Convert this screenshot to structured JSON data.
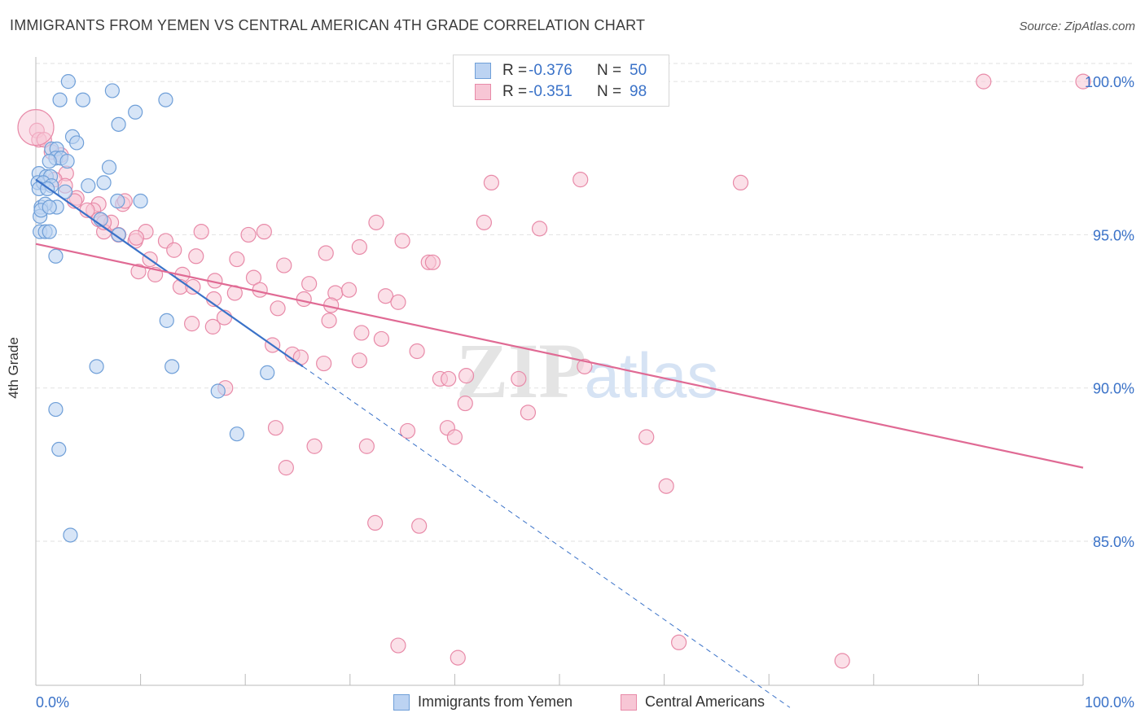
{
  "title": "IMMIGRANTS FROM YEMEN VS CENTRAL AMERICAN 4TH GRADE CORRELATION CHART",
  "source": "Source: ZipAtlas.com",
  "watermark": {
    "zip": "ZIP",
    "atlas": "atlas"
  },
  "legend": {
    "yemen": {
      "r_label": "R =",
      "r_value": "-0.376",
      "n_label": "N =",
      "n_value": "50"
    },
    "central": {
      "r_label": "R =",
      "r_value": "-0.351",
      "n_label": "N =",
      "n_value": "98"
    }
  },
  "colors": {
    "yemen_fill": "#bcd3f2",
    "yemen_stroke": "#6f9fd8",
    "yemen_line": "#3a72c8",
    "central_fill": "#f7c6d5",
    "central_stroke": "#e88aa8",
    "central_line": "#e06a94",
    "axis_text": "#3a72c8",
    "grid": "#e2e2e2"
  },
  "chart_data": {
    "type": "scatter",
    "title": "IMMIGRANTS FROM YEMEN VS CENTRAL AMERICAN 4TH GRADE CORRELATION CHART",
    "xlabel": "",
    "ylabel": "4th Grade",
    "xlim": [
      0,
      100
    ],
    "ylim": [
      80.3,
      100.8
    ],
    "x_tick_labels": [
      "0.0%",
      "100.0%"
    ],
    "y_ticks": [
      {
        "value": 100,
        "label": "100.0%"
      },
      {
        "value": 95,
        "label": "95.0%"
      },
      {
        "value": 90,
        "label": "90.0%"
      },
      {
        "value": 85,
        "label": "85.0%"
      }
    ],
    "grid": true,
    "legend_position": "top-center",
    "series": [
      {
        "name": "Immigrants from Yemen",
        "r": -0.376,
        "n": 50,
        "trend": {
          "x0": 0,
          "y0": 96.8,
          "x1": 25.5,
          "y1": 90.7,
          "dash_to_x": 72
        },
        "points": [
          [
            3.1,
            100.0
          ],
          [
            7.3,
            99.7
          ],
          [
            2.3,
            99.4
          ],
          [
            4.5,
            99.4
          ],
          [
            12.4,
            99.4
          ],
          [
            9.5,
            99.0
          ],
          [
            7.9,
            98.6
          ],
          [
            3.5,
            98.2
          ],
          [
            3.9,
            98.0
          ],
          [
            1.5,
            97.8
          ],
          [
            2.0,
            97.8
          ],
          [
            1.9,
            97.5
          ],
          [
            2.4,
            97.5
          ],
          [
            1.3,
            97.4
          ],
          [
            3.0,
            97.4
          ],
          [
            7.0,
            97.2
          ],
          [
            0.3,
            97.0
          ],
          [
            1.0,
            96.9
          ],
          [
            1.4,
            96.9
          ],
          [
            0.2,
            96.7
          ],
          [
            0.7,
            96.7
          ],
          [
            0.3,
            96.5
          ],
          [
            1.5,
            96.6
          ],
          [
            5.0,
            96.6
          ],
          [
            6.5,
            96.7
          ],
          [
            7.8,
            96.1
          ],
          [
            10.0,
            96.1
          ],
          [
            0.5,
            95.9
          ],
          [
            2.0,
            95.9
          ],
          [
            0.9,
            96.0
          ],
          [
            0.4,
            95.6
          ],
          [
            6.2,
            95.5
          ],
          [
            0.4,
            95.1
          ],
          [
            0.9,
            95.1
          ],
          [
            1.3,
            95.1
          ],
          [
            7.9,
            95.0
          ],
          [
            0.5,
            95.8
          ],
          [
            1.3,
            95.9
          ],
          [
            1.9,
            94.3
          ],
          [
            12.5,
            92.2
          ],
          [
            5.8,
            90.7
          ],
          [
            13.0,
            90.7
          ],
          [
            22.1,
            90.5
          ],
          [
            17.4,
            89.9
          ],
          [
            1.9,
            89.3
          ],
          [
            19.2,
            88.5
          ],
          [
            2.2,
            88.0
          ],
          [
            3.3,
            85.2
          ],
          [
            1.1,
            96.5
          ],
          [
            2.8,
            96.4
          ]
        ]
      },
      {
        "name": "Central Americans",
        "r": -0.351,
        "n": 98,
        "trend": {
          "x0": 0,
          "y0": 94.7,
          "x1": 100,
          "y1": 87.4
        },
        "points": [
          [
            0.1,
            98.4
          ],
          [
            0.3,
            98.1
          ],
          [
            1.5,
            97.7
          ],
          [
            2.4,
            97.6
          ],
          [
            2.9,
            97.0
          ],
          [
            1.8,
            96.8
          ],
          [
            2.8,
            96.6
          ],
          [
            3.9,
            96.2
          ],
          [
            6.0,
            96.0
          ],
          [
            8.3,
            96.0
          ],
          [
            5.5,
            95.8
          ],
          [
            6.0,
            95.5
          ],
          [
            7.2,
            95.4
          ],
          [
            7.9,
            95.0
          ],
          [
            6.5,
            95.1
          ],
          [
            8.5,
            96.1
          ],
          [
            10.5,
            95.1
          ],
          [
            9.5,
            94.8
          ],
          [
            12.4,
            94.8
          ],
          [
            15.8,
            95.1
          ],
          [
            20.3,
            95.0
          ],
          [
            21.8,
            95.1
          ],
          [
            32.5,
            95.4
          ],
          [
            35.0,
            94.8
          ],
          [
            42.8,
            95.4
          ],
          [
            48.1,
            95.2
          ],
          [
            43.5,
            96.7
          ],
          [
            52.0,
            96.8
          ],
          [
            67.3,
            96.7
          ],
          [
            90.5,
            100.0
          ],
          [
            100.0,
            100.0
          ],
          [
            13.2,
            94.5
          ],
          [
            15.3,
            94.3
          ],
          [
            19.2,
            94.2
          ],
          [
            27.7,
            94.4
          ],
          [
            30.9,
            94.6
          ],
          [
            37.5,
            94.1
          ],
          [
            37.9,
            94.1
          ],
          [
            10.9,
            94.2
          ],
          [
            9.8,
            93.8
          ],
          [
            11.4,
            93.7
          ],
          [
            14.0,
            93.7
          ],
          [
            17.1,
            93.5
          ],
          [
            20.8,
            93.6
          ],
          [
            23.7,
            94.0
          ],
          [
            26.1,
            93.4
          ],
          [
            13.8,
            93.3
          ],
          [
            15.0,
            93.3
          ],
          [
            19.0,
            93.1
          ],
          [
            21.4,
            93.2
          ],
          [
            28.6,
            93.1
          ],
          [
            29.9,
            93.2
          ],
          [
            33.4,
            93.0
          ],
          [
            34.6,
            92.8
          ],
          [
            17.0,
            92.9
          ],
          [
            25.6,
            92.9
          ],
          [
            28.2,
            92.7
          ],
          [
            23.1,
            92.6
          ],
          [
            18.0,
            92.3
          ],
          [
            14.9,
            92.1
          ],
          [
            16.9,
            92.0
          ],
          [
            28.0,
            92.2
          ],
          [
            31.1,
            91.8
          ],
          [
            33.0,
            91.6
          ],
          [
            22.6,
            91.4
          ],
          [
            24.5,
            91.1
          ],
          [
            25.3,
            91.0
          ],
          [
            36.4,
            91.2
          ],
          [
            30.9,
            90.9
          ],
          [
            27.5,
            90.8
          ],
          [
            52.4,
            90.7
          ],
          [
            38.6,
            90.3
          ],
          [
            39.4,
            90.3
          ],
          [
            41.1,
            90.4
          ],
          [
            46.1,
            90.3
          ],
          [
            18.1,
            90.0
          ],
          [
            41.0,
            89.5
          ],
          [
            47.0,
            89.2
          ],
          [
            22.9,
            88.7
          ],
          [
            35.5,
            88.6
          ],
          [
            39.3,
            88.7
          ],
          [
            40.0,
            88.4
          ],
          [
            58.3,
            88.4
          ],
          [
            26.6,
            88.1
          ],
          [
            31.6,
            88.1
          ],
          [
            23.9,
            87.4
          ],
          [
            60.2,
            86.8
          ],
          [
            32.4,
            85.6
          ],
          [
            36.6,
            85.5
          ],
          [
            34.6,
            81.6
          ],
          [
            40.3,
            81.2
          ],
          [
            61.4,
            81.7
          ],
          [
            77.0,
            81.1
          ],
          [
            4.9,
            95.8
          ],
          [
            9.6,
            94.9
          ],
          [
            6.5,
            95.4
          ],
          [
            3.7,
            96.1
          ],
          [
            0.8,
            98.1
          ]
        ]
      }
    ]
  },
  "bottom_legend": {
    "yemen": "Immigrants from Yemen",
    "central": "Central Americans"
  }
}
